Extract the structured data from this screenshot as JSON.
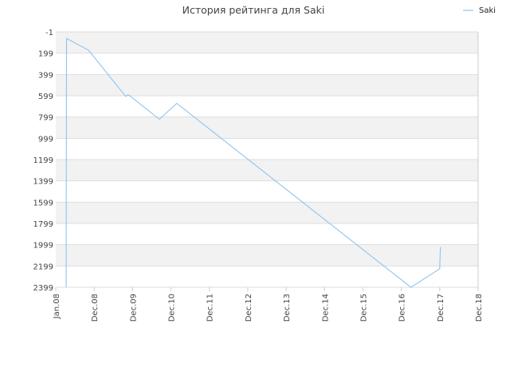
{
  "chart_data": {
    "type": "line",
    "title": "История рейтинга для Saki",
    "xlabel": "",
    "ylabel": "",
    "x_tick_labels": [
      "Jan.08",
      "Dec.08",
      "Dec.09",
      "Dec.10",
      "Dec.11",
      "Dec.12",
      "Dec.13",
      "Dec.14",
      "Dec.15",
      "Dec.16",
      "Dec.17",
      "Dec.18"
    ],
    "y_tick_labels": [
      "-1",
      "199",
      "399",
      "599",
      "799",
      "999",
      "1199",
      "1399",
      "1599",
      "1799",
      "1999",
      "2199",
      "2399"
    ],
    "ylim": [
      2399,
      -1
    ],
    "y_inverted": true,
    "grid": true,
    "legend_position": "top-right",
    "colors": {
      "series": "#8ec3ee",
      "band": "#f2f2f2",
      "grid": "#dddddd",
      "axis": "#cccccc"
    },
    "series": [
      {
        "name": "Saki",
        "points": [
          {
            "x": 2008.27,
            "y": 2399
          },
          {
            "x": 2008.28,
            "y": 60
          },
          {
            "x": 2008.85,
            "y": 170
          },
          {
            "x": 2009.82,
            "y": 605
          },
          {
            "x": 2009.88,
            "y": 590
          },
          {
            "x": 2009.93,
            "y": 600
          },
          {
            "x": 2010.7,
            "y": 820
          },
          {
            "x": 2011.15,
            "y": 670
          },
          {
            "x": 2017.25,
            "y": 2400
          },
          {
            "x": 2018.0,
            "y": 2225
          },
          {
            "x": 2018.01,
            "y": 2100
          },
          {
            "x": 2018.02,
            "y": 2020
          }
        ]
      }
    ]
  }
}
